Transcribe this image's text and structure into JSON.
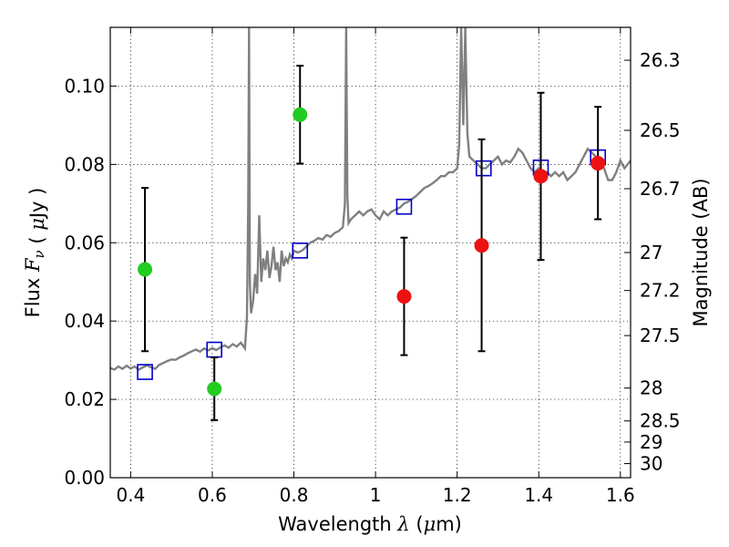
{
  "chart_data": {
    "type": "scatter",
    "xlabel": "Wavelength  λ (μm)",
    "ylabel": "Flux  F_ν  ( μJy )",
    "ylabel_right": "Magnitude (AB)",
    "xlim": [
      0.35,
      1.625
    ],
    "ylim": [
      0.0,
      0.115
    ],
    "grid": true,
    "x_ticks": [
      0.4,
      0.6,
      0.8,
      1.0,
      1.2,
      1.4,
      1.6
    ],
    "x_tick_labels": [
      "0.4",
      "0.6",
      "0.8",
      "1",
      "1.2",
      "1.4",
      "1.6"
    ],
    "y_ticks": [
      0.0,
      0.02,
      0.04,
      0.06,
      0.08,
      0.1
    ],
    "y_tick_labels": [
      "0.00",
      "0.02",
      "0.04",
      "0.06",
      "0.08",
      "0.10"
    ],
    "right_ticks": [
      {
        "label": "26.3",
        "flux": 0.1066
      },
      {
        "label": "26.5",
        "flux": 0.0887
      },
      {
        "label": "26.7",
        "flux": 0.0738
      },
      {
        "label": "27",
        "flux": 0.0575
      },
      {
        "label": "27.2",
        "flux": 0.0478
      },
      {
        "label": "27.5",
        "flux": 0.0363
      },
      {
        "label": "28",
        "flux": 0.0229
      },
      {
        "label": "28.5",
        "flux": 0.0145
      },
      {
        "label": "29",
        "flux": 0.0091
      },
      {
        "label": "30",
        "flux": 0.0036
      }
    ],
    "series": [
      {
        "type": "line",
        "color": "#808080",
        "points": [
          [
            0.35,
            0.028
          ],
          [
            0.36,
            0.0276
          ],
          [
            0.37,
            0.0284
          ],
          [
            0.38,
            0.0278
          ],
          [
            0.39,
            0.0286
          ],
          [
            0.4,
            0.0279
          ],
          [
            0.41,
            0.0284
          ],
          [
            0.42,
            0.0276
          ],
          [
            0.43,
            0.0282
          ],
          [
            0.44,
            0.0287
          ],
          [
            0.45,
            0.0282
          ],
          [
            0.46,
            0.0278
          ],
          [
            0.47,
            0.0288
          ],
          [
            0.48,
            0.0293
          ],
          [
            0.49,
            0.0298
          ],
          [
            0.5,
            0.0302
          ],
          [
            0.51,
            0.0301
          ],
          [
            0.52,
            0.0307
          ],
          [
            0.53,
            0.0312
          ],
          [
            0.54,
            0.0318
          ],
          [
            0.55,
            0.0323
          ],
          [
            0.56,
            0.0327
          ],
          [
            0.57,
            0.0322
          ],
          [
            0.58,
            0.033
          ],
          [
            0.59,
            0.0325
          ],
          [
            0.6,
            0.0331
          ],
          [
            0.61,
            0.0326
          ],
          [
            0.62,
            0.0333
          ],
          [
            0.63,
            0.0338
          ],
          [
            0.64,
            0.0332
          ],
          [
            0.65,
            0.0341
          ],
          [
            0.66,
            0.0335
          ],
          [
            0.67,
            0.0345
          ],
          [
            0.68,
            0.033
          ],
          [
            0.685,
            0.041
          ],
          [
            0.688,
            0.07
          ],
          [
            0.69,
            0.115
          ],
          [
            0.692,
            0.05
          ],
          [
            0.695,
            0.042
          ],
          [
            0.7,
            0.045
          ],
          [
            0.705,
            0.052
          ],
          [
            0.71,
            0.047
          ],
          [
            0.715,
            0.067
          ],
          [
            0.72,
            0.05
          ],
          [
            0.725,
            0.056
          ],
          [
            0.73,
            0.053
          ],
          [
            0.735,
            0.058
          ],
          [
            0.74,
            0.051
          ],
          [
            0.745,
            0.054
          ],
          [
            0.75,
            0.059
          ],
          [
            0.755,
            0.053
          ],
          [
            0.76,
            0.055
          ],
          [
            0.765,
            0.05
          ],
          [
            0.77,
            0.058
          ],
          [
            0.775,
            0.054
          ],
          [
            0.78,
            0.056
          ],
          [
            0.785,
            0.055
          ],
          [
            0.79,
            0.057
          ],
          [
            0.795,
            0.056
          ],
          [
            0.8,
            0.058
          ],
          [
            0.81,
            0.0575
          ],
          [
            0.82,
            0.058
          ],
          [
            0.83,
            0.059
          ],
          [
            0.84,
            0.06
          ],
          [
            0.85,
            0.0605
          ],
          [
            0.86,
            0.0612
          ],
          [
            0.87,
            0.0608
          ],
          [
            0.88,
            0.062
          ],
          [
            0.89,
            0.0615
          ],
          [
            0.9,
            0.0625
          ],
          [
            0.91,
            0.063
          ],
          [
            0.92,
            0.064
          ],
          [
            0.925,
            0.07
          ],
          [
            0.928,
            0.115
          ],
          [
            0.931,
            0.072
          ],
          [
            0.934,
            0.065
          ],
          [
            0.94,
            0.066
          ],
          [
            0.95,
            0.067
          ],
          [
            0.96,
            0.068
          ],
          [
            0.97,
            0.067
          ],
          [
            0.98,
            0.068
          ],
          [
            0.99,
            0.0685
          ],
          [
            1.0,
            0.067
          ],
          [
            1.01,
            0.066
          ],
          [
            1.02,
            0.068
          ],
          [
            1.03,
            0.067
          ],
          [
            1.04,
            0.068
          ],
          [
            1.05,
            0.0685
          ],
          [
            1.06,
            0.069
          ],
          [
            1.07,
            0.07
          ],
          [
            1.08,
            0.0705
          ],
          [
            1.09,
            0.0712
          ],
          [
            1.1,
            0.072
          ],
          [
            1.11,
            0.073
          ],
          [
            1.12,
            0.074
          ],
          [
            1.13,
            0.0745
          ],
          [
            1.14,
            0.0752
          ],
          [
            1.15,
            0.076
          ],
          [
            1.16,
            0.077
          ],
          [
            1.17,
            0.077
          ],
          [
            1.18,
            0.078
          ],
          [
            1.19,
            0.078
          ],
          [
            1.2,
            0.079
          ],
          [
            1.205,
            0.085
          ],
          [
            1.21,
            0.115
          ],
          [
            1.215,
            0.09
          ],
          [
            1.22,
            0.115
          ],
          [
            1.225,
            0.088
          ],
          [
            1.23,
            0.082
          ],
          [
            1.24,
            0.081
          ],
          [
            1.25,
            0.08
          ],
          [
            1.26,
            0.079
          ],
          [
            1.27,
            0.079
          ],
          [
            1.28,
            0.08
          ],
          [
            1.29,
            0.081
          ],
          [
            1.3,
            0.082
          ],
          [
            1.31,
            0.08
          ],
          [
            1.32,
            0.081
          ],
          [
            1.33,
            0.0805
          ],
          [
            1.34,
            0.082
          ],
          [
            1.35,
            0.084
          ],
          [
            1.36,
            0.083
          ],
          [
            1.37,
            0.081
          ],
          [
            1.38,
            0.079
          ],
          [
            1.39,
            0.078
          ],
          [
            1.4,
            0.079
          ],
          [
            1.41,
            0.078
          ],
          [
            1.42,
            0.078
          ],
          [
            1.43,
            0.077
          ],
          [
            1.44,
            0.078
          ],
          [
            1.45,
            0.077
          ],
          [
            1.46,
            0.078
          ],
          [
            1.47,
            0.076
          ],
          [
            1.48,
            0.077
          ],
          [
            1.49,
            0.078
          ],
          [
            1.5,
            0.08
          ],
          [
            1.51,
            0.082
          ],
          [
            1.52,
            0.084
          ],
          [
            1.53,
            0.083
          ],
          [
            1.54,
            0.082
          ],
          [
            1.55,
            0.081
          ],
          [
            1.56,
            0.079
          ],
          [
            1.57,
            0.076
          ],
          [
            1.58,
            0.076
          ],
          [
            1.59,
            0.078
          ],
          [
            1.6,
            0.081
          ],
          [
            1.61,
            0.079
          ],
          [
            1.625,
            0.081
          ]
        ]
      },
      {
        "type": "markers",
        "marker": "open-square",
        "color": "#0000cc",
        "points": [
          [
            0.435,
            0.027
          ],
          [
            0.605,
            0.0327
          ],
          [
            0.815,
            0.058
          ],
          [
            1.07,
            0.0692
          ],
          [
            1.265,
            0.079
          ],
          [
            1.405,
            0.0792
          ],
          [
            1.545,
            0.0818
          ]
        ]
      },
      {
        "type": "markers",
        "marker": "filled-circle",
        "color": "#22cc22",
        "points": [
          {
            "x": 0.435,
            "y": 0.0532,
            "lo": 0.0323,
            "hi": 0.074
          },
          {
            "x": 0.605,
            "y": 0.0227,
            "lo": 0.0147,
            "hi": 0.0307
          },
          {
            "x": 0.815,
            "y": 0.0927,
            "lo": 0.0802,
            "hi": 0.1052
          }
        ]
      },
      {
        "type": "markers",
        "marker": "filled-circle",
        "color": "#ee1111",
        "points": [
          {
            "x": 1.07,
            "y": 0.0463,
            "lo": 0.0313,
            "hi": 0.0613
          },
          {
            "x": 1.26,
            "y": 0.0593,
            "lo": 0.0323,
            "hi": 0.0864
          },
          {
            "x": 1.405,
            "y": 0.077,
            "lo": 0.0556,
            "hi": 0.0983
          },
          {
            "x": 1.545,
            "y": 0.0803,
            "lo": 0.066,
            "hi": 0.0947
          }
        ]
      }
    ]
  }
}
